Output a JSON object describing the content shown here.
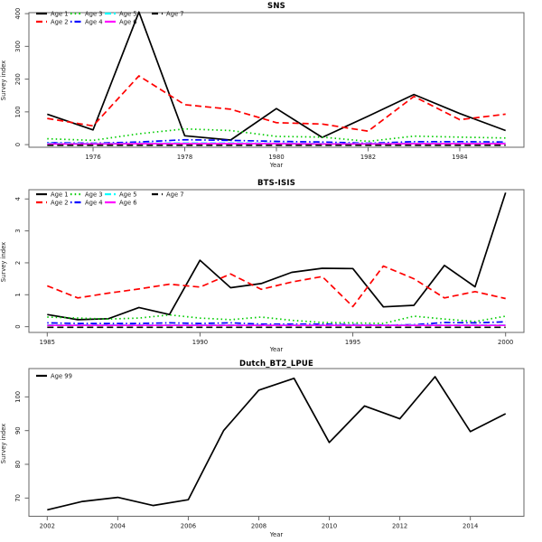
{
  "figure": {
    "background": "#ffffff",
    "box_color": "#666666",
    "tick_text_color": "#1a1a1a",
    "panels": [
      "SNS",
      "BTS-ISIS",
      "Dutch_BT2_LPUE"
    ]
  },
  "chart_data": [
    {
      "type": "line",
      "title": "SNS",
      "xlabel": "Year",
      "ylabel": "Survey index",
      "legend_position": "top-left",
      "grid": false,
      "x": [
        1975,
        1976,
        1977,
        1978,
        1979,
        1980,
        1981,
        1982,
        1983,
        1984,
        1985
      ],
      "xticks": [
        1976,
        1978,
        1980,
        1982,
        1984
      ],
      "yticks": [
        0,
        100,
        200,
        300,
        400
      ],
      "xlim": [
        1974.6,
        1985.4
      ],
      "ylim": [
        -8,
        403
      ],
      "series": [
        {
          "name": "Age 1",
          "color": "#000000",
          "style": "solid",
          "values": [
            93,
            45,
            405,
            27,
            14,
            110,
            22,
            87,
            153,
            95,
            43
          ]
        },
        {
          "name": "Age 2",
          "color": "#FF0000",
          "style": "dashed",
          "values": [
            80,
            57,
            210,
            122,
            108,
            67,
            63,
            41,
            147,
            76,
            93
          ]
        },
        {
          "name": "Age 3",
          "color": "#00CD00",
          "style": "dotted",
          "values": [
            18,
            13,
            33,
            48,
            43,
            25,
            23,
            10,
            26,
            23,
            20
          ]
        },
        {
          "name": "Age 4",
          "color": "#0000FF",
          "style": "dashdot",
          "values": [
            6,
            4,
            8,
            15,
            13,
            10,
            8,
            4,
            9,
            9,
            8
          ]
        },
        {
          "name": "Age 5",
          "color": "#00FFFF",
          "style": "longdash",
          "values": [
            4,
            3,
            4,
            5,
            5,
            4,
            3,
            3,
            4,
            4,
            4
          ]
        },
        {
          "name": "Age 6",
          "color": "#FF00FF",
          "style": "solid",
          "values": [
            2,
            2,
            3,
            3,
            3,
            3,
            2,
            2,
            3,
            3,
            3
          ]
        },
        {
          "name": "Age 7",
          "color": "#000000",
          "style": "dashed",
          "values": [
            -2,
            -2,
            -2,
            -2,
            -2,
            -2,
            -2,
            -2,
            -2,
            -2,
            -2
          ]
        }
      ]
    },
    {
      "type": "line",
      "title": "BTS-ISIS",
      "xlabel": "Year",
      "ylabel": "Survey index",
      "legend_position": "top-left",
      "grid": false,
      "x": [
        1985,
        1986,
        1987,
        1988,
        1989,
        1990,
        1991,
        1992,
        1993,
        1994,
        1995,
        1996,
        1997,
        1998,
        1999,
        2000
      ],
      "xticks": [
        1985,
        1990,
        1995,
        2000
      ],
      "yticks": [
        0,
        1,
        2,
        3,
        4
      ],
      "xlim": [
        1984.4,
        2000.6
      ],
      "ylim": [
        -0.18,
        4.29
      ],
      "series": [
        {
          "name": "Age 1",
          "color": "#000000",
          "style": "solid",
          "values": [
            0.38,
            0.22,
            0.25,
            0.6,
            0.38,
            2.08,
            1.22,
            1.35,
            1.7,
            1.83,
            1.82,
            0.62,
            0.67,
            1.92,
            1.25,
            4.2
          ]
        },
        {
          "name": "Age 2",
          "color": "#FF0000",
          "style": "dashed",
          "values": [
            1.28,
            0.9,
            1.05,
            1.18,
            1.33,
            1.24,
            1.65,
            1.17,
            1.4,
            1.57,
            0.63,
            1.9,
            1.5,
            0.9,
            1.1,
            0.88
          ]
        },
        {
          "name": "Age 3",
          "color": "#00CD00",
          "style": "dotted",
          "values": [
            0.3,
            0.27,
            0.24,
            0.27,
            0.37,
            0.27,
            0.22,
            0.3,
            0.2,
            0.13,
            0.12,
            0.1,
            0.33,
            0.24,
            0.16,
            0.33
          ]
        },
        {
          "name": "Age 4",
          "color": "#0000FF",
          "style": "dashdot",
          "values": [
            0.12,
            0.1,
            0.1,
            0.1,
            0.12,
            0.1,
            0.12,
            0.08,
            0.08,
            0.08,
            0.06,
            0.05,
            0.06,
            0.13,
            0.12,
            0.15
          ]
        },
        {
          "name": "Age 5",
          "color": "#00FFFF",
          "style": "longdash",
          "values": [
            0.05,
            0.05,
            0.05,
            0.05,
            0.05,
            0.05,
            0.05,
            0.05,
            0.05,
            0.05,
            0.05,
            0.05,
            0.05,
            0.05,
            0.05,
            0.05
          ]
        },
        {
          "name": "Age 6",
          "color": "#FF00FF",
          "style": "solid",
          "values": [
            0.04,
            0.04,
            0.04,
            0.04,
            0.04,
            0.04,
            0.04,
            0.04,
            0.04,
            0.04,
            0.04,
            0.04,
            0.04,
            0.04,
            0.04,
            0.04
          ]
        },
        {
          "name": "Age 7",
          "color": "#000000",
          "style": "dashed",
          "values": [
            -0.02,
            -0.02,
            -0.02,
            -0.02,
            -0.02,
            -0.02,
            -0.02,
            -0.02,
            -0.02,
            -0.02,
            -0.02,
            -0.02,
            -0.02,
            -0.02,
            -0.02,
            -0.02
          ]
        }
      ]
    },
    {
      "type": "line",
      "title": "Dutch_BT2_LPUE",
      "xlabel": "Year",
      "ylabel": "Survey index",
      "legend_position": "top-left",
      "grid": false,
      "x": [
        2002,
        2003,
        2004,
        2005,
        2006,
        2007,
        2008,
        2009,
        2010,
        2011,
        2012,
        2013,
        2014,
        2015
      ],
      "xticks": [
        2002,
        2004,
        2006,
        2008,
        2010,
        2012,
        2014
      ],
      "yticks": [
        70,
        80,
        90,
        100
      ],
      "xlim": [
        2001.48,
        2015.52
      ],
      "ylim": [
        64.6,
        108.4
      ],
      "series": [
        {
          "name": "Age 99",
          "color": "#000000",
          "style": "solid",
          "values": [
            66.5,
            69,
            70.2,
            67.8,
            69.5,
            90,
            102,
            105.5,
            86.5,
            97.3,
            93.5,
            106,
            89.7,
            95
          ]
        }
      ]
    }
  ]
}
